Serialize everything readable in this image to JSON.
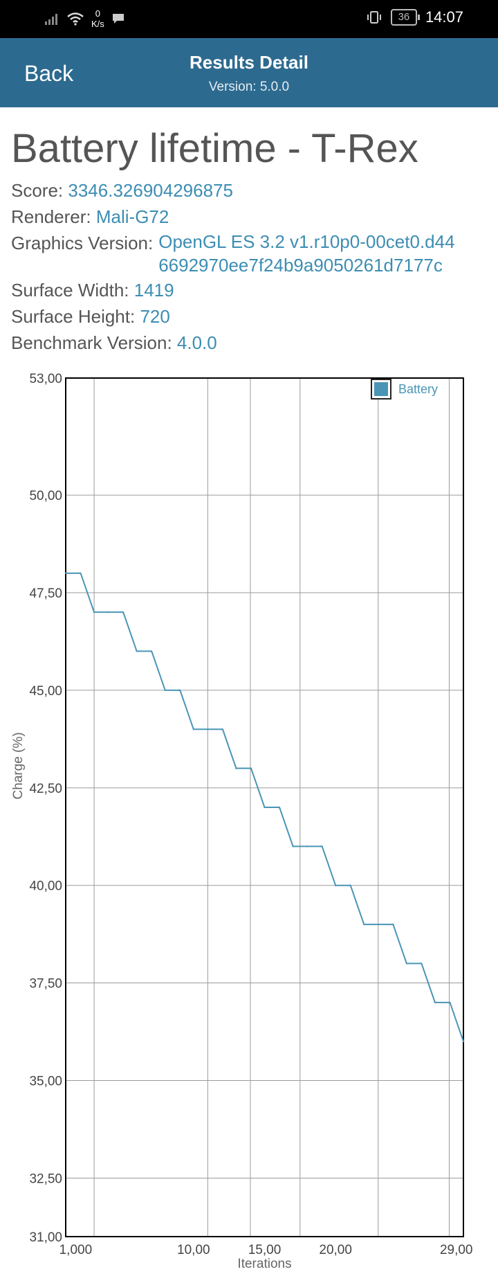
{
  "status_bar": {
    "net_speed_value": "0",
    "net_speed_unit": "K/s",
    "battery_level": "36",
    "time": "14:07"
  },
  "app_bar": {
    "back_label": "Back",
    "title": "Results Detail",
    "subtitle": "Version: 5.0.0"
  },
  "result": {
    "title": "Battery lifetime - T-Rex",
    "fields": [
      {
        "label": "Score:",
        "value": "3346.326904296875"
      },
      {
        "label": "Renderer:",
        "value": "Mali-G72"
      },
      {
        "label": "Graphics Version:",
        "value": "OpenGL ES 3.2 v1.r10p0-00cet0.d44 6692970ee7f24b9a9050261d7177c"
      },
      {
        "label": "Surface Width:",
        "value": "1419"
      },
      {
        "label": "Surface Height:",
        "value": "720"
      },
      {
        "label": "Benchmark Version:",
        "value": "4.0.0"
      }
    ]
  },
  "chart_data": {
    "type": "line",
    "xlabel": "Iterations",
    "ylabel": "Charge (%)",
    "x_ticks": [
      "1,000",
      "10,00",
      "15,00",
      "20,00",
      "29,00"
    ],
    "y_ticks": [
      "53,00",
      "50,00",
      "47,50",
      "45,00",
      "42,50",
      "40,00",
      "37,50",
      "35,00",
      "32,50",
      "31,00"
    ],
    "ylim": [
      31,
      53
    ],
    "grid": true,
    "legend_position": "top-right",
    "series": [
      {
        "name": "Battery",
        "color": "#4a95b5",
        "values": [
          48,
          48,
          47,
          47,
          47,
          46,
          46,
          45,
          45,
          44,
          44,
          44,
          43,
          43,
          42,
          42,
          41,
          41,
          41,
          40,
          40,
          39,
          39,
          39,
          38,
          38,
          37,
          37,
          36
        ],
        "x": [
          1,
          2,
          3,
          4,
          5,
          6,
          7,
          8,
          9,
          10,
          11,
          12,
          13,
          14,
          15,
          16,
          17,
          18,
          19,
          20,
          21,
          22,
          23,
          24,
          25,
          26,
          27,
          28,
          29
        ]
      }
    ]
  }
}
